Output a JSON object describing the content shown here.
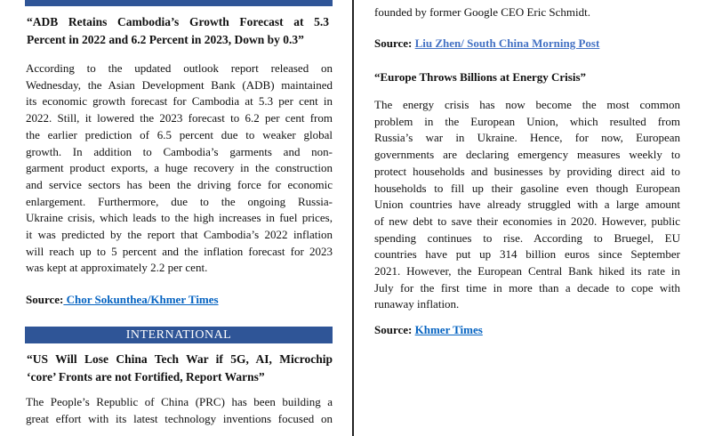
{
  "left": {
    "article1": {
      "headline": [
        "“ADB Retains Cambodia’s Growth Forecast at 5.3",
        "Percent in 2022 and 6.2 Percent in 2023, Down by 0.3”"
      ],
      "body": [
        "According to the updated outlook report released on",
        "Wednesday, the Asian Development Bank (ADB) maintained",
        "its economic growth forecast for Cambodia at 5.3 per cent in",
        "2022. Still, it lowered the 2023 forecast to 6.2 per cent from",
        "the earlier prediction of 6.5 percent due to weaker global",
        "growth. In addition to Cambodia’s garments and non-",
        "garment product exports, a huge recovery in the construction",
        "and service sectors has been the driving force for economic",
        "enlargement. Furthermore, due to the ongoing Russia-",
        "Ukraine crisis, which leads to the high increases in fuel prices,",
        "it was predicted by the report that Cambodia’s 2022 inflation",
        "will reach up to 5 percent and the inflation forecast for 2023",
        "was kept at approximately 2.2 per cent."
      ],
      "source_label": "Source:",
      "source_link": " Chor Sokunthea/Khmer Times"
    },
    "section_header": "INTERNATIONAL",
    "article2": {
      "headline": [
        "“US Will Lose China Tech War if 5G, AI, Microchip",
        "‘core’ Fronts are not Fortified, Report Warns”"
      ],
      "body": [
        "The People’s Republic of China (PRC) has been building a",
        "great effort with its latest technology inventions focused on"
      ]
    }
  },
  "right": {
    "continuation": "founded by former Google CEO Eric Schmidt.",
    "source1_label": "Source:",
    "source1_link": "Liu Zhen/ South China Morning Post",
    "article3": {
      "headline": "“Europe Throws Billions at Energy Crisis”",
      "body": [
        "The energy crisis has now become the most common",
        "problem in the European Union, which resulted from",
        "Russia’s war in Ukraine. Hence, for now, European",
        "governments are declaring emergency measures weekly to",
        "protect households and businesses by providing direct aid to",
        "households to fill up their gasoline even though European",
        "Union countries have already struggled with a large amount",
        "of new debt to save their economies in 2020. However, public",
        "spending continues to rise. According to Bruegel, EU",
        "countries have put up 314 billion euros since September",
        "2021. However, the European Central Bank hiked its rate in",
        "July for the first time in more than a decade to cope with",
        "runaway inflation."
      ],
      "source_label": "Source:",
      "source_link": "Khmer Times"
    }
  },
  "colors": {
    "section_bar": "#2f5597",
    "link": "#0563c1"
  }
}
